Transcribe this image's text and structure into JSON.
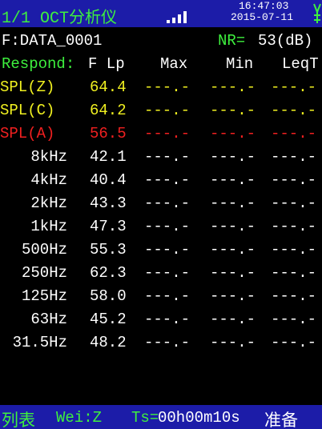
{
  "header": {
    "title": "1/1 OCT分析仪",
    "time": "16:47:03",
    "date": "2015-07-11"
  },
  "file": "F:DATA_0001",
  "nr_label": "NR=",
  "nr_value": "53(dB)",
  "columns": {
    "respond": "Respond:",
    "lp": "F Lp",
    "max": "Max",
    "min": "Min",
    "leq": "LeqT"
  },
  "rows": [
    {
      "label": "SPL(Z)",
      "lp": "64.4",
      "max": "---.-",
      "min": "---.-",
      "leq": "---.-"
    },
    {
      "label": "SPL(C)",
      "lp": "64.2",
      "max": "---.-",
      "min": "---.-",
      "leq": "---.-"
    },
    {
      "label": "SPL(A)",
      "lp": "56.5",
      "max": "---.-",
      "min": "---.-",
      "leq": "---.-"
    },
    {
      "label": "8kHz",
      "lp": "42.1",
      "max": "---.-",
      "min": "---.-",
      "leq": "---.-"
    },
    {
      "label": "4kHz",
      "lp": "40.4",
      "max": "---.-",
      "min": "---.-",
      "leq": "---.-"
    },
    {
      "label": "2kHz",
      "lp": "43.3",
      "max": "---.-",
      "min": "---.-",
      "leq": "---.-"
    },
    {
      "label": "1kHz",
      "lp": "47.3",
      "max": "---.-",
      "min": "---.-",
      "leq": "---.-"
    },
    {
      "label": "500Hz",
      "lp": "55.3",
      "max": "---.-",
      "min": "---.-",
      "leq": "---.-"
    },
    {
      "label": "250Hz",
      "lp": "62.3",
      "max": "---.-",
      "min": "---.-",
      "leq": "---.-"
    },
    {
      "label": "125Hz",
      "lp": "58.0",
      "max": "---.-",
      "min": "---.-",
      "leq": "---.-"
    },
    {
      "label": "63Hz",
      "lp": "45.2",
      "max": "---.-",
      "min": "---.-",
      "leq": "---.-"
    },
    {
      "label": "31.5Hz",
      "lp": "48.2",
      "max": "---.-",
      "min": "---.-",
      "leq": "---.-"
    }
  ],
  "footer": {
    "mode": "列表",
    "weighting": "Wei:Z",
    "ts_label": "Ts=",
    "ts_value": "00h00m10s",
    "status": "准备"
  }
}
